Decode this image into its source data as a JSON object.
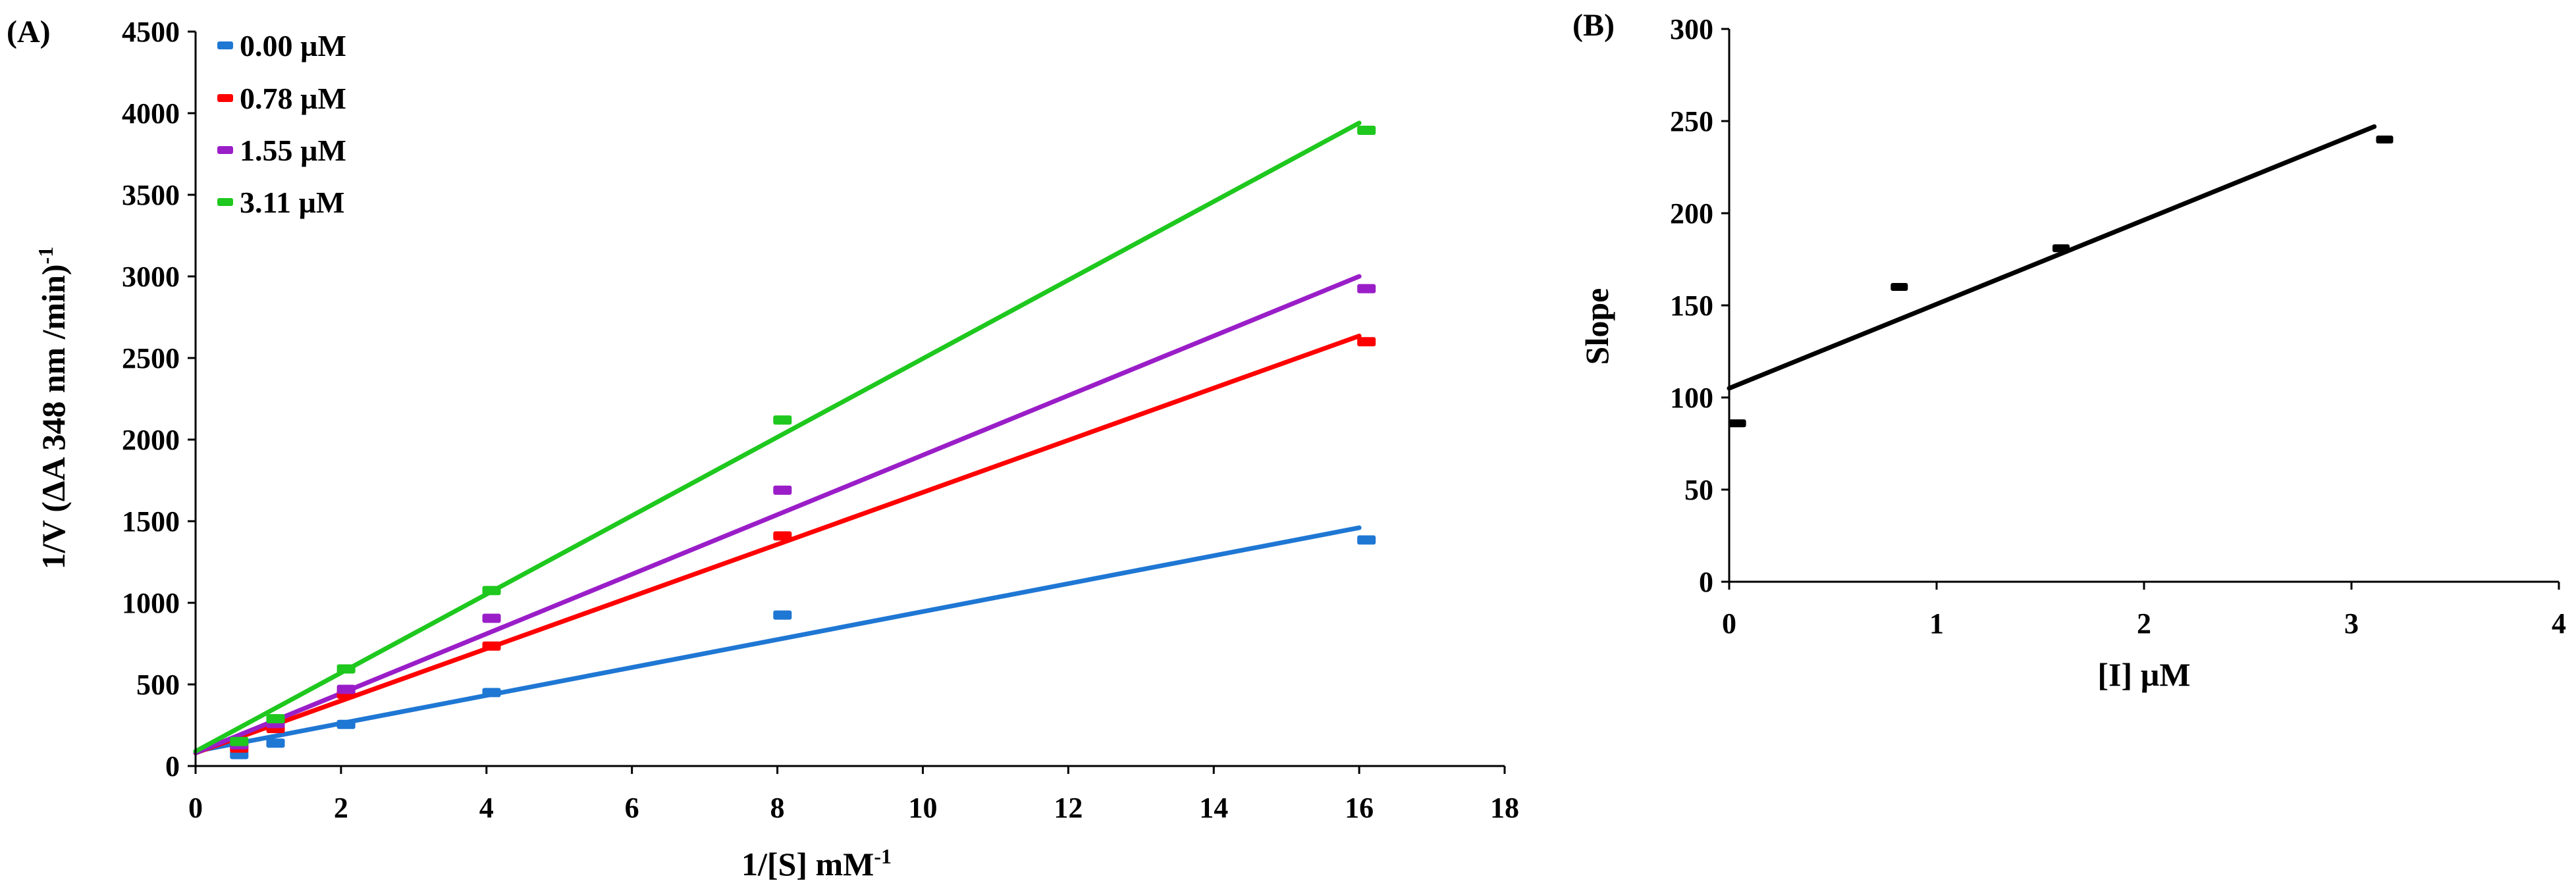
{
  "chart_data": [
    {
      "panel_label": "(A)",
      "type": "scatter",
      "trendlines": true,
      "xlabel": "1/[S] mM",
      "xlabel_sup": "-1",
      "ylabel": "1/V (ΔA 348 nm /min)",
      "ylabel_sup": "-1",
      "xlim": [
        0,
        18
      ],
      "ylim": [
        0,
        4500
      ],
      "xticks": [
        0,
        2,
        4,
        6,
        8,
        10,
        12,
        14,
        16,
        18
      ],
      "yticks": [
        0,
        500,
        1000,
        1500,
        2000,
        2500,
        3000,
        3500,
        4000,
        4500
      ],
      "legend_position": "top-left",
      "series": [
        {
          "name": "0.00 µM",
          "color": "#1f77d4",
          "x": [
            0.6,
            1.1,
            2.07,
            4.07,
            8.07,
            16.1
          ],
          "y": [
            70,
            140,
            255,
            450,
            925,
            1385
          ],
          "fit": {
            "x": [
              0,
              16
            ],
            "y": [
              90,
              1460
            ]
          }
        },
        {
          "name": "0.78 µM",
          "color": "#ff0000",
          "x": [
            0.6,
            1.1,
            2.07,
            4.07,
            8.07,
            16.1
          ],
          "y": [
            110,
            230,
            440,
            735,
            1410,
            2600
          ],
          "fit": {
            "x": [
              0,
              16
            ],
            "y": [
              80,
              2635
            ]
          }
        },
        {
          "name": "1.55 µM",
          "color": "#9a1ec8",
          "x": [
            0.6,
            1.1,
            2.07,
            4.07,
            8.07,
            16.1
          ],
          "y": [
            130,
            260,
            470,
            905,
            1690,
            2925
          ],
          "fit": {
            "x": [
              0,
              16
            ],
            "y": [
              80,
              3000
            ]
          }
        },
        {
          "name": "3.11 µM",
          "color": "#1ec81e",
          "x": [
            0.6,
            1.1,
            2.07,
            4.07,
            8.07,
            16.1
          ],
          "y": [
            150,
            290,
            595,
            1075,
            2120,
            3895
          ],
          "fit": {
            "x": [
              0,
              16
            ],
            "y": [
              90,
              3940
            ]
          }
        }
      ]
    },
    {
      "panel_label": "(B)",
      "type": "scatter",
      "trendlines": true,
      "xlabel": "[I] µM",
      "ylabel": "Slope",
      "xlim": [
        0,
        4
      ],
      "ylim": [
        0,
        300
      ],
      "xticks": [
        0,
        1,
        2,
        3,
        4
      ],
      "yticks": [
        0,
        50,
        100,
        150,
        200,
        250,
        300
      ],
      "series": [
        {
          "name": "Slope",
          "color": "#000000",
          "x": [
            0.04,
            0.82,
            1.6,
            3.16
          ],
          "y": [
            86,
            160,
            181,
            240
          ],
          "fit": {
            "x": [
              0,
              3.11
            ],
            "y": [
              105,
              247
            ]
          }
        }
      ]
    }
  ]
}
